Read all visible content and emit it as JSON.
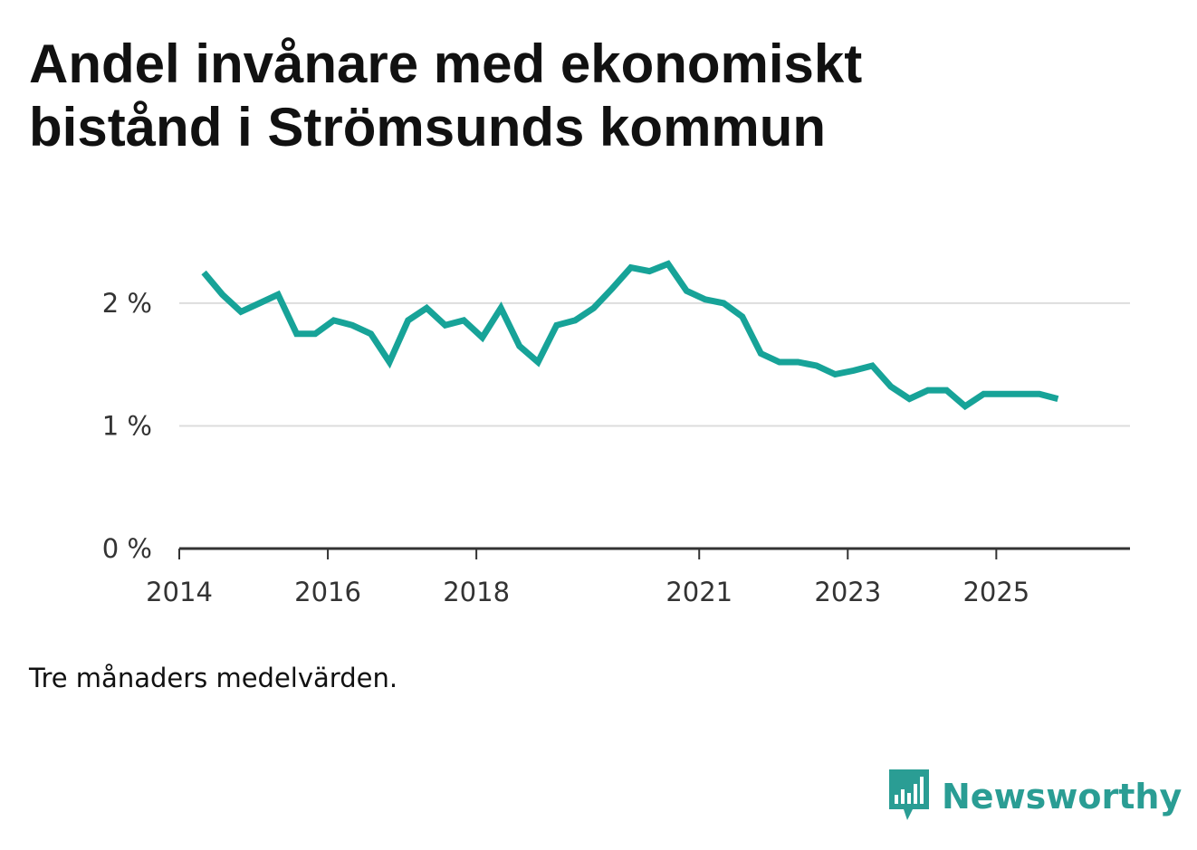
{
  "title": "Andel invånare med ekonomiskt bistånd i Strömsunds kommun",
  "note": "Tre månaders medelvärden.",
  "brand": {
    "name": "Newsworthy",
    "icon": "newsworthy-logo-icon"
  },
  "colors": {
    "line": "#17a398",
    "grid": "#dddddd",
    "axis": "#333333",
    "brand": "#2a9d94"
  },
  "chart_data": {
    "type": "line",
    "title": "Andel invånare med ekonomiskt bistånd i Strömsunds kommun",
    "xlabel": "",
    "ylabel": "",
    "ylim": [
      0,
      2.7
    ],
    "xlim": [
      2014,
      2026.8
    ],
    "yticks": [
      0,
      1,
      2
    ],
    "ytick_labels": [
      "0 %",
      "1 %",
      "2 %"
    ],
    "xticks": [
      2014,
      2016,
      2018,
      2021,
      2023,
      2025
    ],
    "xtick_labels": [
      "2014",
      "2016",
      "2018",
      "2021",
      "2023",
      "2025"
    ],
    "grid": true,
    "series": [
      {
        "name": "Andel invånare med ekonomiskt bistånd",
        "x": [
          2014.33,
          2014.58,
          2014.83,
          2015.08,
          2015.33,
          2015.58,
          2015.83,
          2016.08,
          2016.33,
          2016.58,
          2016.83,
          2017.08,
          2017.33,
          2017.58,
          2017.83,
          2018.08,
          2018.33,
          2018.58,
          2018.83,
          2019.08,
          2019.33,
          2019.58,
          2019.83,
          2020.08,
          2020.33,
          2020.58,
          2020.83,
          2021.08,
          2021.33,
          2021.58,
          2021.83,
          2022.08,
          2022.33,
          2022.58,
          2022.83,
          2023.08,
          2023.33,
          2023.58,
          2023.83,
          2024.08,
          2024.33,
          2024.58,
          2024.83,
          2025.08,
          2025.33,
          2025.58,
          2025.83
        ],
        "values": [
          2.25,
          2.07,
          1.93,
          2.0,
          2.07,
          1.75,
          1.75,
          1.86,
          1.82,
          1.75,
          1.52,
          1.86,
          1.96,
          1.82,
          1.86,
          1.72,
          1.96,
          1.65,
          1.52,
          1.82,
          1.86,
          1.96,
          2.12,
          2.29,
          2.26,
          2.32,
          2.1,
          2.03,
          2.0,
          1.89,
          1.59,
          1.52,
          1.52,
          1.49,
          1.42,
          1.45,
          1.49,
          1.32,
          1.22,
          1.29,
          1.29,
          1.16,
          1.26,
          1.26,
          1.26,
          1.26,
          1.22
        ]
      }
    ]
  }
}
